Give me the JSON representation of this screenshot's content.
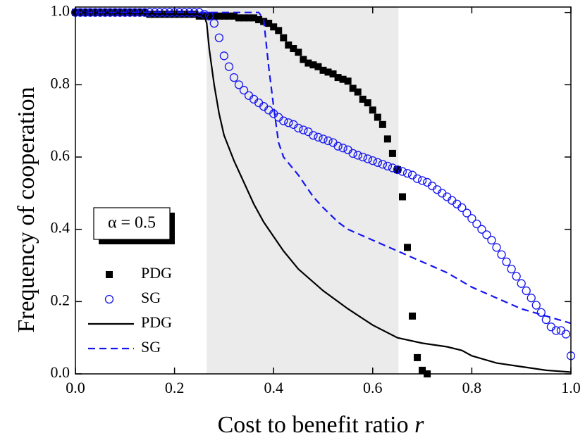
{
  "chart_data": {
    "type": "scatter-line",
    "xlabel": "Cost to benefit ratio",
    "xlabel_var": "r",
    "ylabel": "Frequency of cooperation",
    "annotation": "α = 0.5",
    "shade": [
      0.265,
      0.652
    ],
    "xlim": [
      0,
      1
    ],
    "ylim": [
      0,
      1.015
    ],
    "xticks": [
      {
        "value": 0,
        "label": "0.0"
      },
      0.2,
      0.4,
      0.6,
      0.8,
      {
        "value": 1,
        "label": "1.0"
      }
    ],
    "yticks": [
      {
        "value": 0,
        "label": "0.0"
      },
      0.2,
      0.4,
      0.6,
      0.8,
      {
        "value": 1,
        "label": "1.0"
      }
    ],
    "legend": "lower left",
    "series": [
      {
        "name": "PDG",
        "color": "#000000",
        "marker": "square",
        "x": [
          0,
          0.01,
          0.02,
          0.03,
          0.04,
          0.05,
          0.06,
          0.07,
          0.08,
          0.09,
          0.1,
          0.11,
          0.12,
          0.13,
          0.14,
          0.15,
          0.16,
          0.17,
          0.18,
          0.19,
          0.2,
          0.21,
          0.22,
          0.23,
          0.24,
          0.25,
          0.26,
          0.27,
          0.28,
          0.29,
          0.3,
          0.31,
          0.32,
          0.33,
          0.34,
          0.35,
          0.36,
          0.37,
          0.38,
          0.39,
          0.4,
          0.41,
          0.42,
          0.43,
          0.44,
          0.45,
          0.46,
          0.47,
          0.48,
          0.49,
          0.5,
          0.51,
          0.52,
          0.53,
          0.54,
          0.55,
          0.56,
          0.57,
          0.58,
          0.59,
          0.6,
          0.61,
          0.62,
          0.63,
          0.64,
          0.65,
          0.66,
          0.67,
          0.68,
          0.69,
          0.7,
          0.71
        ],
        "values": [
          1,
          1,
          1,
          1,
          1,
          1,
          1,
          1,
          1,
          1,
          1,
          1,
          1,
          1,
          1,
          0.995,
          0.995,
          0.995,
          0.995,
          0.995,
          0.995,
          0.995,
          0.995,
          0.995,
          0.995,
          0.99,
          0.99,
          0.99,
          0.99,
          0.99,
          0.99,
          0.99,
          0.99,
          0.985,
          0.985,
          0.985,
          0.985,
          0.98,
          0.975,
          0.97,
          0.96,
          0.95,
          0.93,
          0.91,
          0.9,
          0.89,
          0.87,
          0.86,
          0.855,
          0.85,
          0.84,
          0.835,
          0.83,
          0.82,
          0.815,
          0.81,
          0.79,
          0.78,
          0.76,
          0.75,
          0.73,
          0.71,
          0.69,
          0.65,
          0.61,
          0.565,
          0.49,
          0.35,
          0.16,
          0.045,
          0.01,
          0
        ]
      },
      {
        "name": "SG",
        "color": "#1515f0",
        "marker": "circle",
        "x": [
          0,
          0.01,
          0.02,
          0.03,
          0.04,
          0.05,
          0.06,
          0.07,
          0.08,
          0.09,
          0.1,
          0.11,
          0.12,
          0.13,
          0.14,
          0.15,
          0.16,
          0.17,
          0.18,
          0.19,
          0.2,
          0.21,
          0.22,
          0.23,
          0.24,
          0.25,
          0.26,
          0.27,
          0.28,
          0.29,
          0.3,
          0.31,
          0.32,
          0.33,
          0.34,
          0.35,
          0.36,
          0.37,
          0.38,
          0.39,
          0.4,
          0.41,
          0.42,
          0.43,
          0.44,
          0.45,
          0.46,
          0.47,
          0.48,
          0.49,
          0.5,
          0.51,
          0.52,
          0.53,
          0.54,
          0.55,
          0.56,
          0.57,
          0.58,
          0.59,
          0.6,
          0.61,
          0.62,
          0.63,
          0.64,
          0.65,
          0.66,
          0.67,
          0.68,
          0.69,
          0.7,
          0.71,
          0.72,
          0.73,
          0.74,
          0.75,
          0.76,
          0.77,
          0.78,
          0.79,
          0.8,
          0.81,
          0.82,
          0.83,
          0.84,
          0.85,
          0.86,
          0.87,
          0.88,
          0.89,
          0.9,
          0.91,
          0.92,
          0.93,
          0.94,
          0.95,
          0.96,
          0.97,
          0.98,
          0.99,
          1
        ],
        "values": [
          1,
          1,
          1,
          1,
          1,
          1,
          1,
          1,
          1,
          1,
          1,
          1,
          1,
          1,
          1,
          1,
          1,
          1,
          1,
          1,
          1,
          1,
          1,
          1,
          1,
          1,
          0.995,
          0.99,
          0.97,
          0.93,
          0.88,
          0.85,
          0.82,
          0.8,
          0.785,
          0.77,
          0.76,
          0.75,
          0.74,
          0.73,
          0.72,
          0.71,
          0.7,
          0.695,
          0.69,
          0.68,
          0.675,
          0.67,
          0.66,
          0.655,
          0.65,
          0.645,
          0.64,
          0.63,
          0.625,
          0.62,
          0.61,
          0.605,
          0.6,
          0.595,
          0.59,
          0.585,
          0.58,
          0.575,
          0.57,
          0.565,
          0.56,
          0.555,
          0.55,
          0.54,
          0.535,
          0.53,
          0.52,
          0.51,
          0.5,
          0.49,
          0.48,
          0.47,
          0.46,
          0.445,
          0.43,
          0.415,
          0.4,
          0.385,
          0.37,
          0.35,
          0.33,
          0.31,
          0.29,
          0.27,
          0.25,
          0.23,
          0.21,
          0.19,
          0.17,
          0.15,
          0.13,
          0.12,
          0.12,
          0.11,
          0.05
        ]
      },
      {
        "name": "PDG",
        "color": "#000000",
        "line_style": "solid",
        "x": [
          0,
          0.25,
          0.26,
          0.265,
          0.27,
          0.28,
          0.29,
          0.3,
          0.32,
          0.34,
          0.36,
          0.38,
          0.4,
          0.42,
          0.45,
          0.5,
          0.55,
          0.6,
          0.65,
          0.7,
          0.75,
          0.78,
          0.8,
          0.85,
          0.9,
          0.95,
          1
        ],
        "values": [
          1,
          0.995,
          0.99,
          0.97,
          0.9,
          0.8,
          0.72,
          0.66,
          0.59,
          0.53,
          0.47,
          0.42,
          0.38,
          0.34,
          0.29,
          0.23,
          0.18,
          0.135,
          0.1,
          0.085,
          0.075,
          0.065,
          0.05,
          0.03,
          0.02,
          0.01,
          0.005
        ]
      },
      {
        "name": "SG",
        "color": "#1515f0",
        "line_style": "dashed",
        "x": [
          0,
          0.25,
          0.3,
          0.37,
          0.38,
          0.39,
          0.4,
          0.41,
          0.42,
          0.45,
          0.48,
          0.5,
          0.53,
          0.55,
          0.6,
          0.65,
          0.7,
          0.75,
          0.8,
          0.85,
          0.9,
          0.95,
          1
        ],
        "values": [
          1,
          1,
          1,
          1,
          0.98,
          0.85,
          0.74,
          0.64,
          0.6,
          0.55,
          0.49,
          0.46,
          0.42,
          0.4,
          0.37,
          0.34,
          0.31,
          0.28,
          0.24,
          0.21,
          0.18,
          0.16,
          0.14
        ]
      }
    ]
  }
}
